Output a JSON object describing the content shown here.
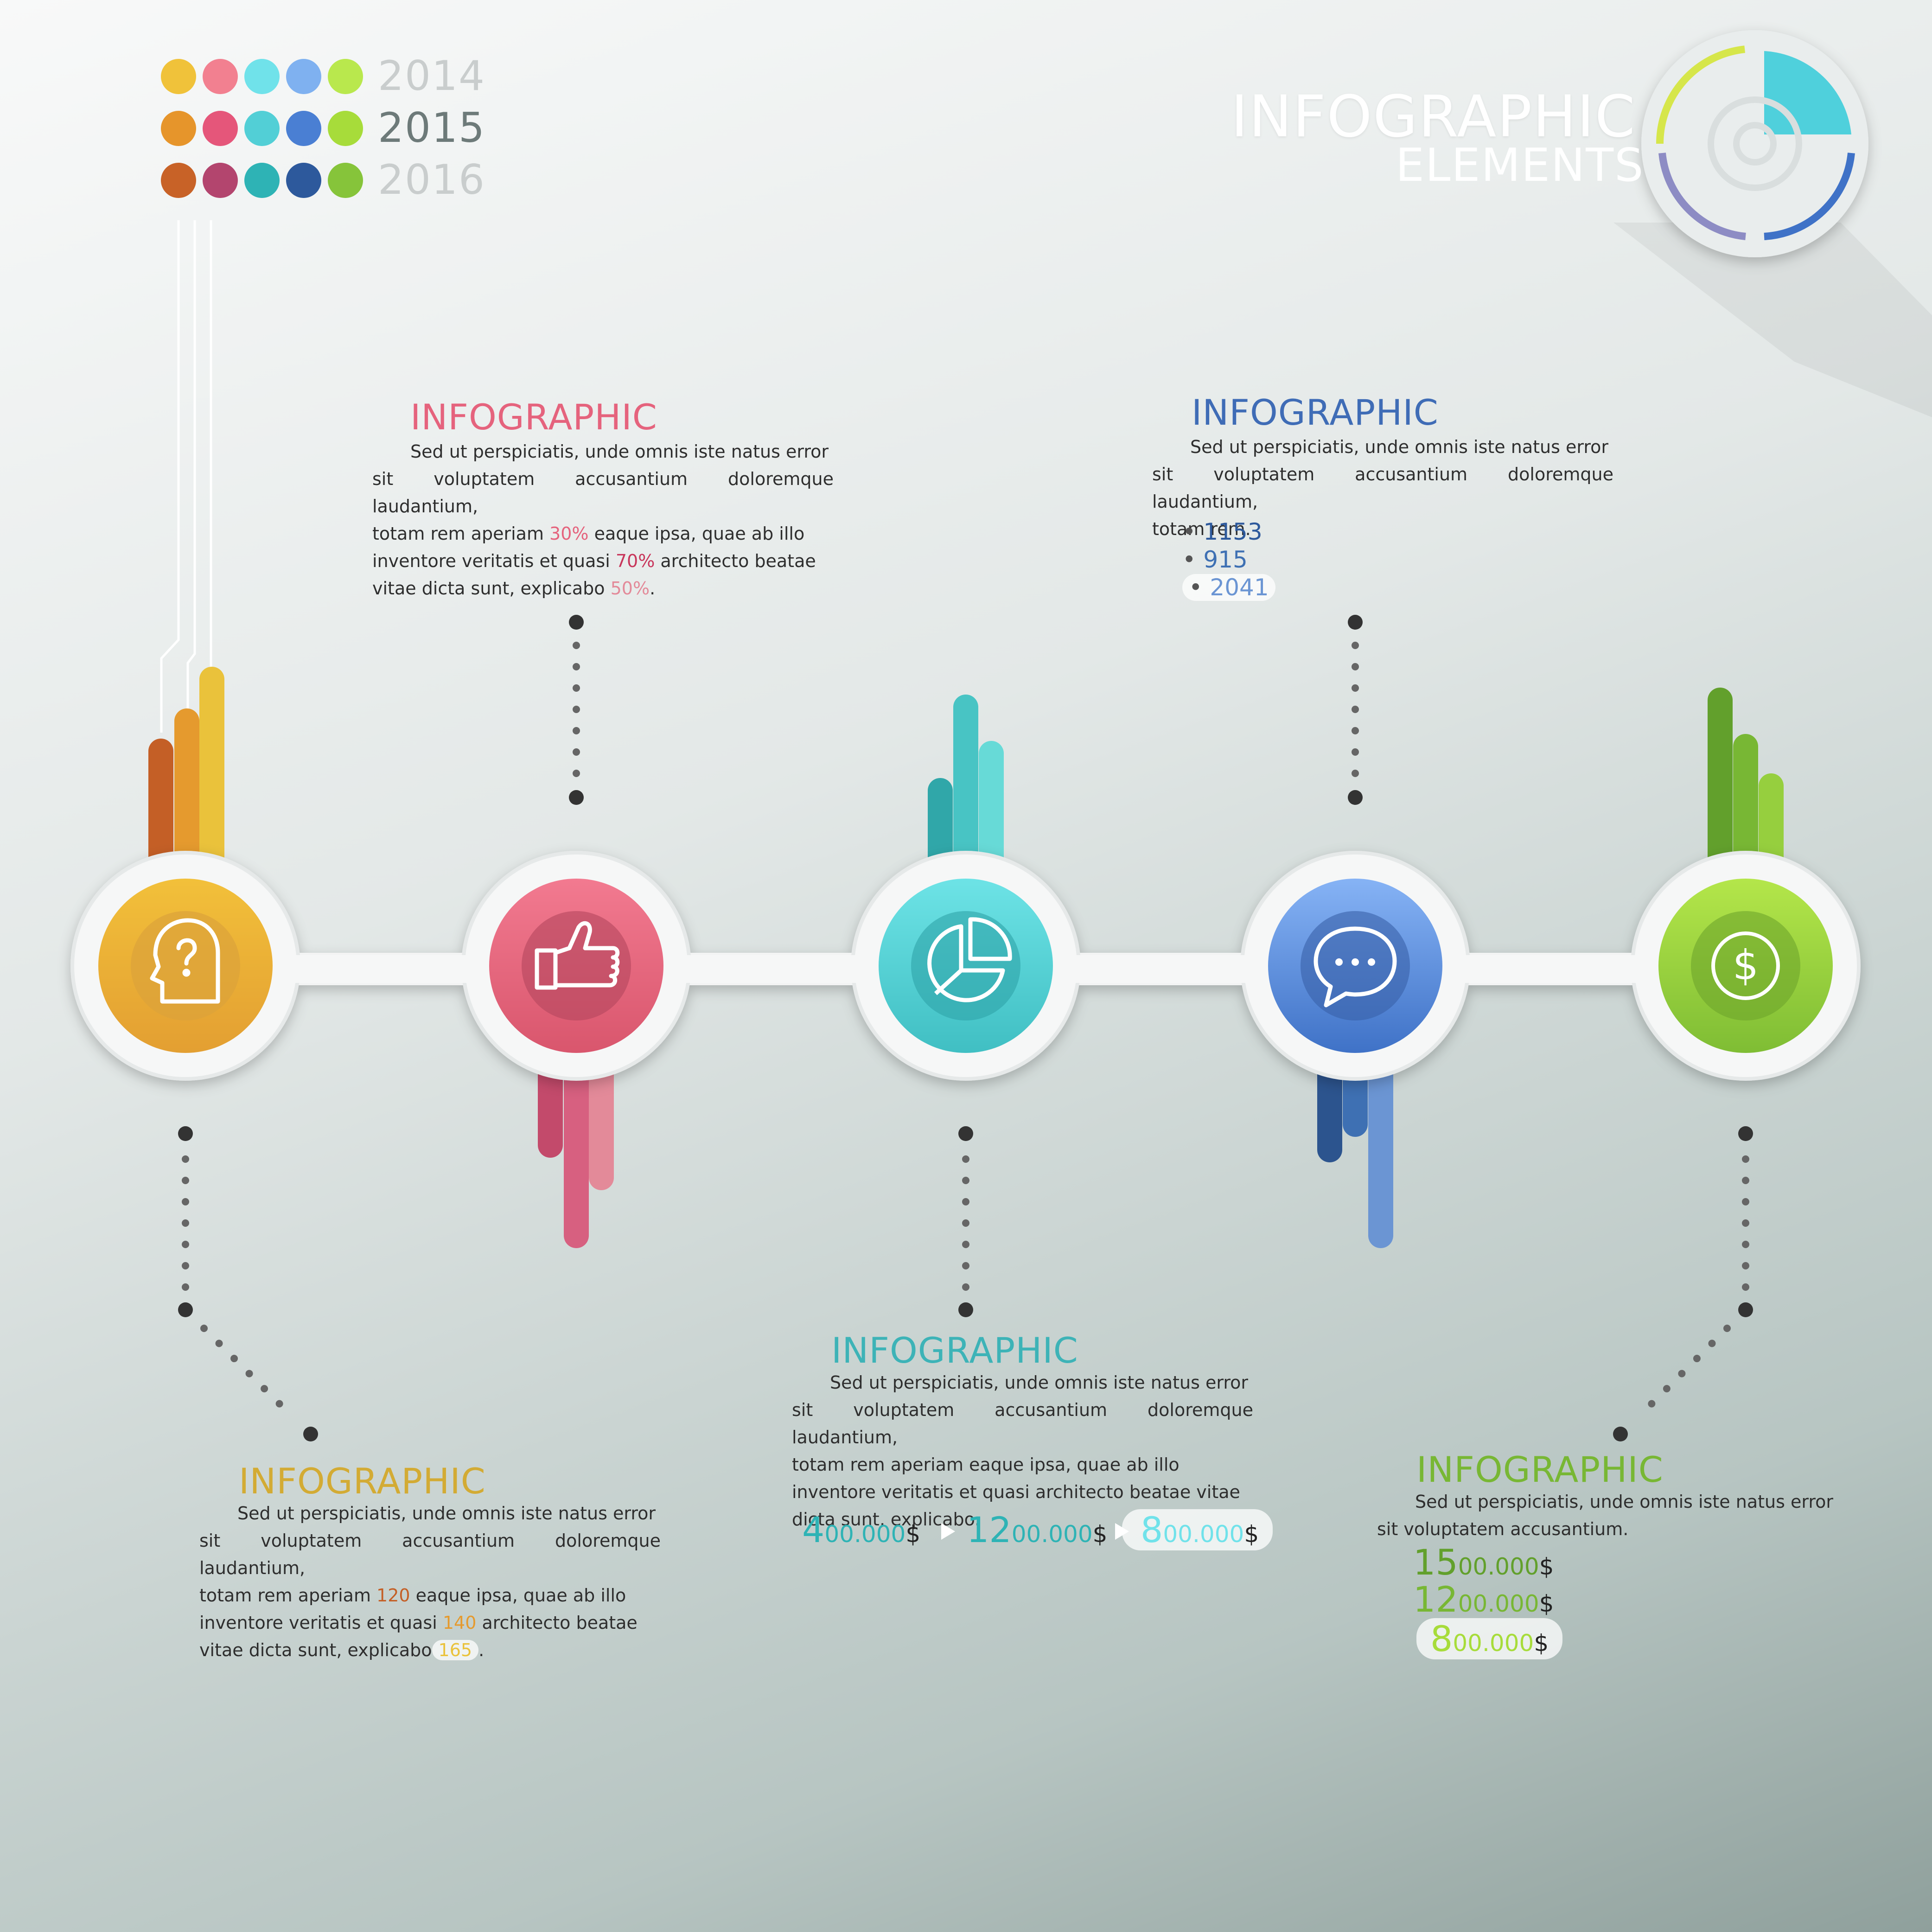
{
  "header": {
    "line1": "INFOGRAPHIC",
    "line2": "ELEMENTS"
  },
  "legend": {
    "years": [
      "2014",
      "2015",
      "2016"
    ],
    "palette": [
      [
        "#f0c23a",
        "#f28090",
        "#70e2ea",
        "#7fb1f0",
        "#b9e84d"
      ],
      [
        "#e6952b",
        "#e5567a",
        "#52cfd6",
        "#4a7fd3",
        "#a7dc3a"
      ],
      [
        "#c86227",
        "#b3456e",
        "#2eb3b5",
        "#2d599c",
        "#86c43a"
      ]
    ]
  },
  "steps": [
    {
      "icon": "head-question-icon",
      "grad": [
        "#f2c03a",
        "#e39f32"
      ],
      "inner": "#dca23a",
      "bars": [
        "#c45f26",
        "#e59a2e",
        "#eac23b"
      ]
    },
    {
      "icon": "thumbs-up-icon",
      "grad": [
        "#f27a90",
        "#d9566d"
      ],
      "inner": "#b4465e",
      "bars": [
        "#c34a6b",
        "#d76080",
        "#e38a99"
      ]
    },
    {
      "icon": "pie-chart-icon",
      "grad": [
        "#6de3e6",
        "#40bfc3"
      ],
      "inner": "#2fa4a8",
      "bars": [
        "#30a7a9",
        "#48c4c4",
        "#67dad7"
      ]
    },
    {
      "icon": "chat-bubble-icon",
      "grad": [
        "#86b3f5",
        "#3f72c7"
      ],
      "inner": "#3861a8",
      "bars": [
        "#2c548e",
        "#3e70b3",
        "#6b95d3"
      ]
    },
    {
      "icon": "dollar-icon",
      "grad": [
        "#b4e64a",
        "#7fbd34"
      ],
      "inner": "#6ea52c",
      "bars": [
        "#62a02c",
        "#78b734",
        "#96cf3e"
      ]
    }
  ],
  "blocks": {
    "b1": {
      "title": "INFOGRAPHIC",
      "l1": "Sed ut perspiciatis, unde omnis iste natus error",
      "l2": "sit voluptatem accusantium doloremque laudantium,",
      "l3a": "totam rem aperiam ",
      "l3v": "30%",
      "l3b": " eaque ipsa, quae ab illo",
      "l4a": "inventore veritatis et quasi ",
      "l4v": "70%",
      "l4b": " architecto beatae",
      "l5a": "vitae dicta sunt, explicabo ",
      "l5v": "50%",
      "l5b": "."
    },
    "b2": {
      "title": "INFOGRAPHIC",
      "l1": "Sed ut perspiciatis, unde omnis iste natus error",
      "l2": "sit voluptatem accusantium doloremque laudantium,",
      "l3": "totam rem.",
      "items": [
        "1153",
        "915",
        "2041"
      ]
    },
    "b3": {
      "title": "INFOGRAPHIC",
      "l1": "Sed ut perspiciatis, unde omnis iste natus error",
      "l2": "sit voluptatem accusantium doloremque laudantium,",
      "l3a": "totam rem aperiam ",
      "l3v": "120",
      "l3b": " eaque ipsa, quae ab illo",
      "l4a": "inventore veritatis et quasi ",
      "l4v": "140",
      "l4b": " architecto beatae",
      "l5a": "vitae dicta sunt, explicabo",
      "l5v": "165",
      "l5b": "."
    },
    "b4": {
      "title": "INFOGRAPHIC",
      "l1": "Sed ut perspiciatis, unde omnis iste natus error",
      "l2": "sit voluptatem accusantium doloremque laudantium,",
      "l3": "totam rem aperiam eaque ipsa, quae ab illo",
      "l4": "inventore veritatis et quasi architecto beatae vitae",
      "l5": "dicta sunt, explicabo.",
      "m1a": "4",
      "m1b": "00.000",
      "m1c": "$",
      "m2a": "12",
      "m2b": "00.000",
      "m2c": "$",
      "m3a": "8",
      "m3b": "00.000",
      "m3c": "$"
    },
    "b5": {
      "title": "INFOGRAPHIC",
      "l1": "Sed ut perspiciatis, unde omnis iste natus error",
      "l2": "sit voluptatem accusantium.",
      "m1a": "15",
      "m1b": "00.000",
      "m1c": "$",
      "m2a": "12",
      "m2b": "00.000",
      "m2c": "$",
      "m3a": "8",
      "m3b": "00.000",
      "m3c": "$"
    }
  }
}
